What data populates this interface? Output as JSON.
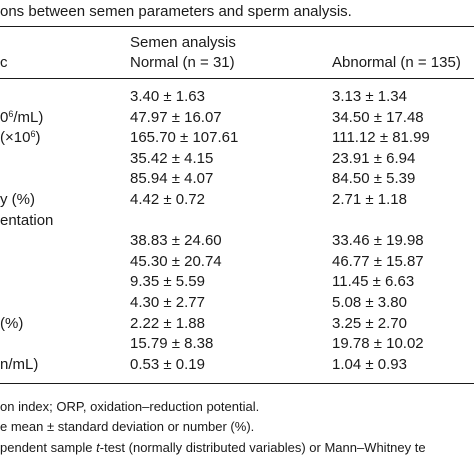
{
  "caption": "ons between semen parameters and sperm analysis.",
  "header": {
    "group_label": "Semen analysis",
    "col0_label": "c",
    "normal_label": "Normal (n = 31)",
    "abnormal_label": "Abnormal (n = 135)"
  },
  "rows": [
    {
      "label": "",
      "label_pre": "",
      "label_sup": "",
      "label_post": "",
      "normal": "3.40 ± 1.63",
      "abnormal": "3.13 ± 1.34"
    },
    {
      "label": "",
      "label_pre": "0",
      "label_sup": "6",
      "label_post": "/mL)",
      "normal": "47.97 ± 16.07",
      "abnormal": "34.50 ± 17.48"
    },
    {
      "label": "",
      "label_pre": "(×10",
      "label_sup": "6",
      "label_post": ")",
      "normal": "165.70 ± 107.61",
      "abnormal": "111.12 ± 81.99"
    },
    {
      "label": "",
      "label_pre": "",
      "label_sup": "",
      "label_post": "",
      "normal": "35.42 ± 4.15",
      "abnormal": "23.91 ± 6.94"
    },
    {
      "label": "",
      "label_pre": "",
      "label_sup": "",
      "label_post": "",
      "normal": "85.94 ± 4.07",
      "abnormal": "84.50 ± 5.39"
    },
    {
      "label": "y (%)",
      "label_pre": "",
      "label_sup": "",
      "label_post": "",
      "normal": "4.42 ± 0.72",
      "abnormal": "2.71 ± 1.18"
    },
    {
      "label": "entation",
      "label_pre": "",
      "label_sup": "",
      "label_post": "",
      "normal": "",
      "abnormal": ""
    },
    {
      "label": "",
      "label_pre": "",
      "label_sup": "",
      "label_post": "",
      "normal": "38.83 ± 24.60",
      "abnormal": "33.46 ± 19.98"
    },
    {
      "label": "",
      "label_pre": "",
      "label_sup": "",
      "label_post": "",
      "normal": "45.30 ± 20.74",
      "abnormal": "46.77 ± 15.87"
    },
    {
      "label": "",
      "label_pre": "",
      "label_sup": "",
      "label_post": "",
      "normal": "9.35 ± 5.59",
      "abnormal": "11.45 ± 6.63"
    },
    {
      "label": "",
      "label_pre": "",
      "label_sup": "",
      "label_post": "",
      "normal": "4.30 ± 2.77",
      "abnormal": "5.08 ± 3.80"
    },
    {
      "label": "(%)",
      "label_pre": "",
      "label_sup": "",
      "label_post": "",
      "normal": "2.22 ± 1.88",
      "abnormal": "3.25 ± 2.70"
    },
    {
      "label": "",
      "label_pre": "",
      "label_sup": "",
      "label_post": "",
      "normal": "15.79 ± 8.38",
      "abnormal": "19.78 ± 10.02"
    },
    {
      "label": "n/mL)",
      "label_pre": "",
      "label_sup": "",
      "label_post": "",
      "normal": "0.53 ± 0.19",
      "abnormal": "1.04 ± 0.93"
    }
  ],
  "footnotes": {
    "line1": "on index; ORP, oxidation–reduction potential.",
    "line2": "e mean ± standard deviation or number (%).",
    "line3_pre": "pendent sample ",
    "line3_em": "t",
    "line3_post": "-test (normally distributed variables) or Mann–Whitney te"
  }
}
